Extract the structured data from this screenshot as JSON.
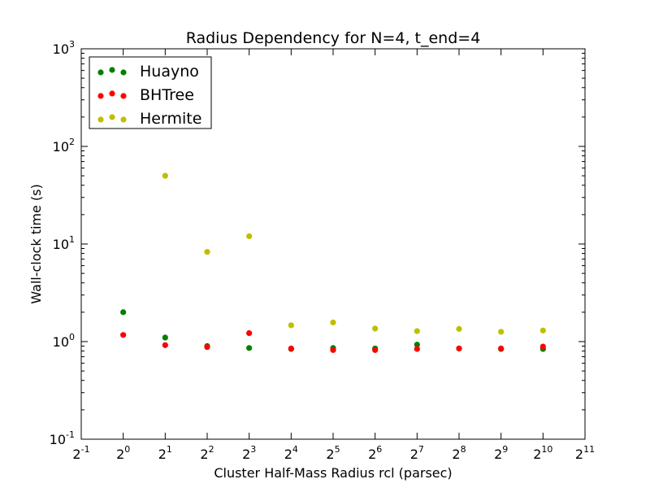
{
  "chart_data": {
    "type": "scatter",
    "title": "Radius Dependency for N=4, t_end=4",
    "xlabel": "Cluster Half-Mass Radius rcl (parsec)",
    "ylabel": "Wall-clock time (s)",
    "xscale": "log2",
    "yscale": "log10",
    "xlim_exponent": [
      -1,
      11
    ],
    "ylim_exponent": [
      -1,
      3
    ],
    "x_tick_exponents": [
      -1,
      0,
      1,
      2,
      3,
      4,
      5,
      6,
      7,
      8,
      9,
      10,
      11
    ],
    "y_tick_exponents": [
      -1,
      0,
      1,
      2,
      3
    ],
    "x_tick_base": "2",
    "y_tick_base": "10",
    "grid": false,
    "legend_position": "top-left",
    "series": [
      {
        "name": "Huayno",
        "color": "#008000",
        "x": [
          1,
          2,
          4,
          8,
          16,
          32,
          64,
          128,
          256,
          512,
          1024
        ],
        "y": [
          2.0,
          1.1,
          0.9,
          0.86,
          0.84,
          0.86,
          0.85,
          0.93,
          0.85,
          0.84,
          0.84
        ]
      },
      {
        "name": "BHTree",
        "color": "#ff0000",
        "x": [
          1,
          2,
          4,
          8,
          16,
          32,
          64,
          128,
          256,
          512,
          1024
        ],
        "y": [
          1.17,
          0.92,
          0.88,
          1.22,
          0.85,
          0.82,
          0.82,
          0.84,
          0.85,
          0.85,
          0.89
        ]
      },
      {
        "name": "Hermite",
        "color": "#bfbf00",
        "x": [
          2,
          4,
          8,
          16,
          32,
          64,
          128,
          256,
          512,
          1024
        ],
        "y": [
          50,
          8.3,
          12,
          1.47,
          1.57,
          1.36,
          1.28,
          1.35,
          1.26,
          1.3
        ]
      }
    ]
  }
}
